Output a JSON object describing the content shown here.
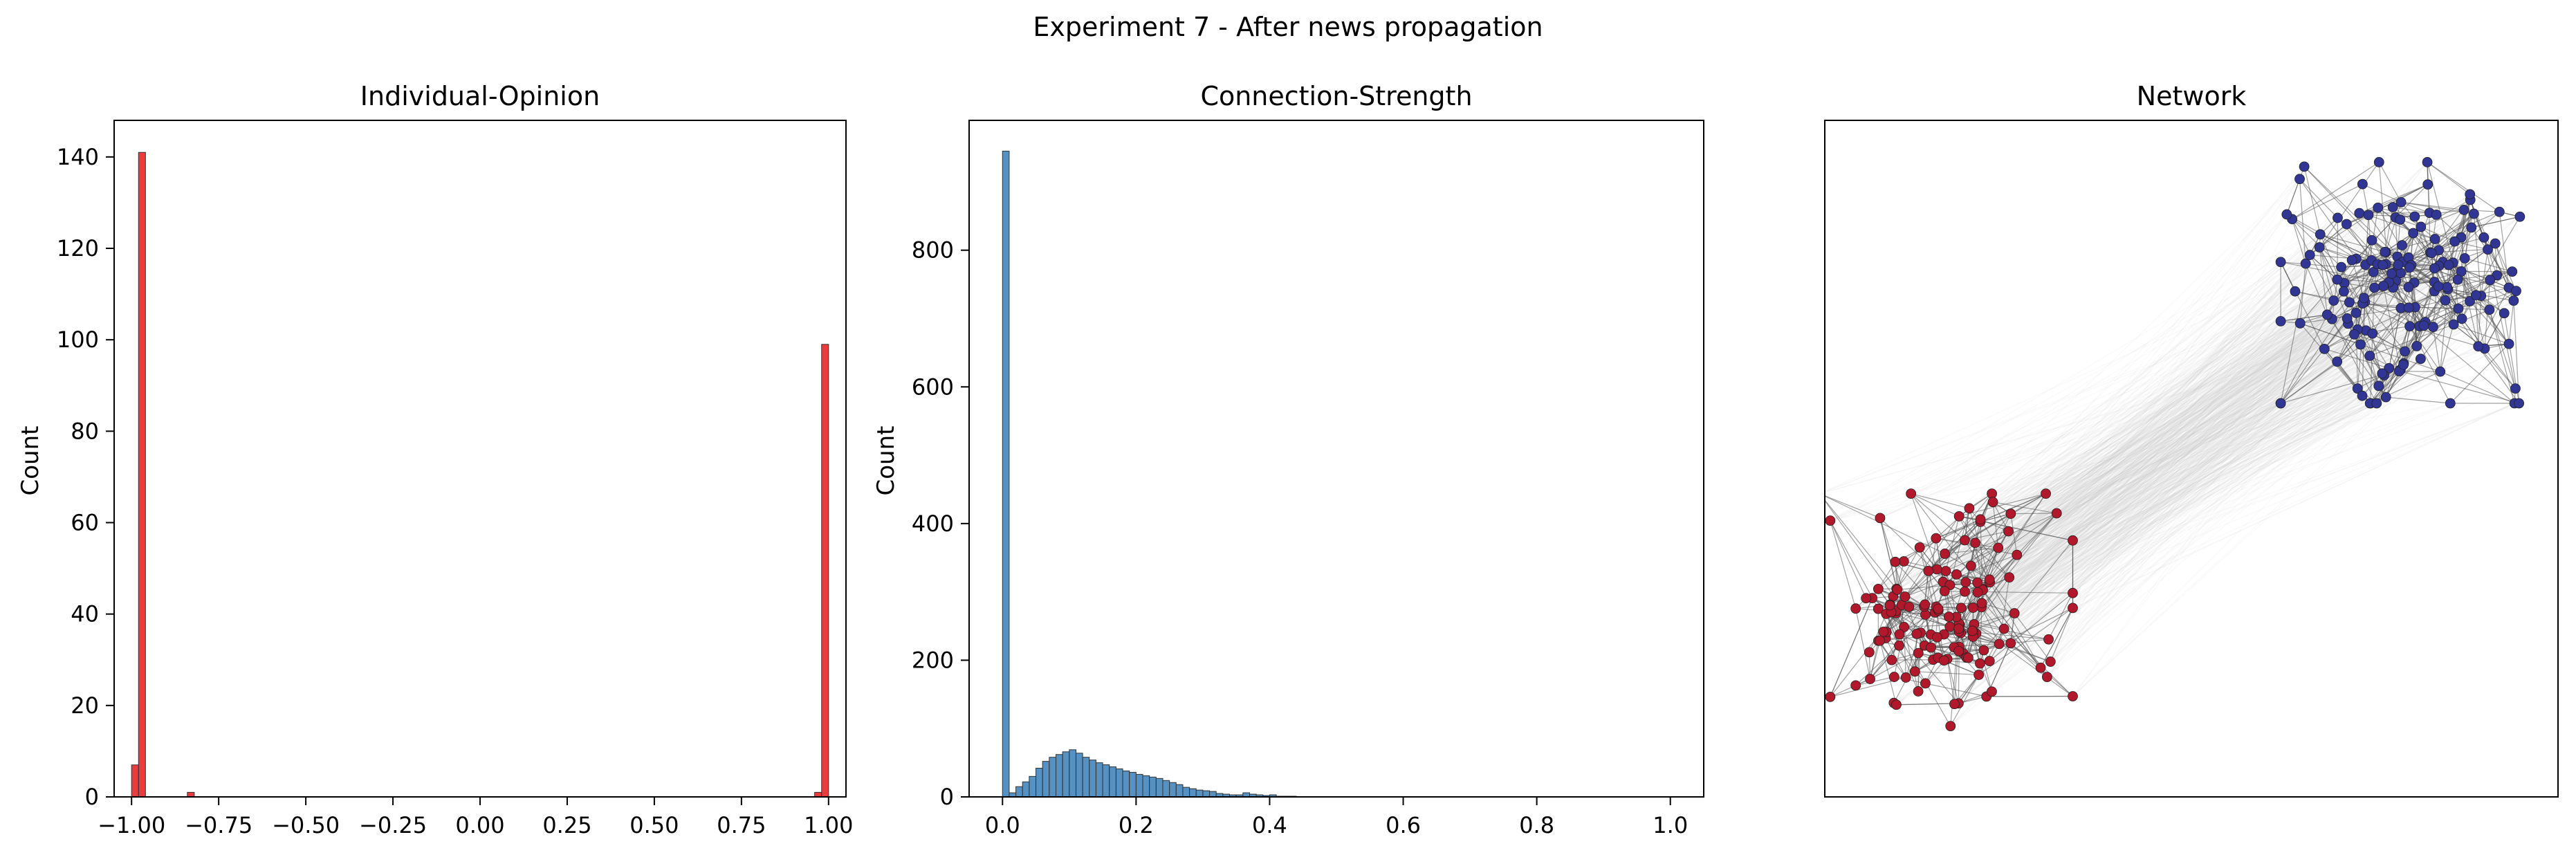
{
  "figure_title": "Experiment 7 - After news propagation",
  "chart_data": [
    {
      "type": "bar",
      "title": "Individual-Opinion",
      "xlabel": "",
      "ylabel": "Count",
      "xlim": [
        -1.05,
        1.05
      ],
      "ylim": [
        0,
        148
      ],
      "xticks": [
        -1.0,
        -0.75,
        -0.5,
        -0.25,
        0.0,
        0.25,
        0.5,
        0.75,
        1.0
      ],
      "xtick_labels": [
        "−1.00",
        "−0.75",
        "−0.50",
        "−0.25",
        "0.00",
        "0.25",
        "0.50",
        "0.75",
        "1.00"
      ],
      "yticks": [
        0,
        20,
        40,
        60,
        80,
        100,
        120,
        140
      ],
      "ytick_labels": [
        "0",
        "20",
        "40",
        "60",
        "80",
        "100",
        "120",
        "140"
      ],
      "bin_width": 0.02,
      "color": "#e41a1c",
      "bins": [
        {
          "x": -0.99,
          "count": 7
        },
        {
          "x": -0.97,
          "count": 141
        },
        {
          "x": -0.83,
          "count": 1
        },
        {
          "x": 0.97,
          "count": 1
        },
        {
          "x": 0.99,
          "count": 99
        }
      ],
      "grid": false
    },
    {
      "type": "bar",
      "title": "Connection-Strength",
      "xlabel": "",
      "ylabel": "Count",
      "xlim": [
        -0.05,
        1.05
      ],
      "ylim": [
        0,
        990
      ],
      "xticks": [
        0.0,
        0.2,
        0.4,
        0.6,
        0.8,
        1.0
      ],
      "xtick_labels": [
        "0.0",
        "0.2",
        "0.4",
        "0.6",
        "0.8",
        "1.0"
      ],
      "yticks": [
        0,
        200,
        400,
        600,
        800
      ],
      "ytick_labels": [
        "0",
        "200",
        "400",
        "600",
        "800"
      ],
      "bin_width": 0.01,
      "color": "#377eb8",
      "bin_start": 0.0,
      "counts": [
        945,
        6,
        15,
        22,
        30,
        42,
        52,
        58,
        62,
        66,
        69,
        64,
        58,
        54,
        50,
        47,
        44,
        41,
        38,
        36,
        33,
        31,
        29,
        27,
        24,
        21,
        18,
        14,
        12,
        10,
        9,
        8,
        5,
        4,
        3,
        3,
        6,
        4,
        3,
        2,
        3,
        1,
        1,
        1
      ],
      "grid": false
    },
    {
      "type": "network",
      "title": "Network",
      "clusters": [
        {
          "name": "",
          "nodes": 140,
          "color": "#b2182b",
          "center": [
            0.16,
            0.27
          ],
          "spread": 0.09
        },
        {
          "name": "",
          "nodes": 160,
          "color": "#313695",
          "center": [
            0.8,
            0.76
          ],
          "spread": 0.09
        }
      ],
      "axes_visible": false
    }
  ]
}
